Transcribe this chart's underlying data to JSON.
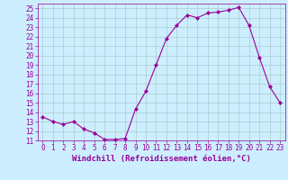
{
  "x": [
    0,
    1,
    2,
    3,
    4,
    5,
    6,
    7,
    8,
    9,
    10,
    11,
    12,
    13,
    14,
    15,
    16,
    17,
    18,
    19,
    20,
    21,
    22,
    23
  ],
  "y": [
    13.5,
    13.0,
    12.7,
    13.0,
    12.2,
    11.8,
    11.1,
    11.1,
    11.2,
    14.3,
    16.2,
    19.0,
    21.8,
    23.2,
    24.3,
    24.0,
    24.5,
    24.6,
    24.8,
    25.1,
    23.2,
    19.8,
    16.7,
    15.0
  ],
  "line_color": "#990099",
  "marker": "D",
  "marker_size": 2.0,
  "bg_color": "#cceeff",
  "grid_color": "#aacccc",
  "xlabel": "Windchill (Refroidissement éolien,°C)",
  "xlim": [
    -0.5,
    23.5
  ],
  "ylim": [
    11,
    25.5
  ],
  "yticks": [
    11,
    12,
    13,
    14,
    15,
    16,
    17,
    18,
    19,
    20,
    21,
    22,
    23,
    24,
    25
  ],
  "xticks": [
    0,
    1,
    2,
    3,
    4,
    5,
    6,
    7,
    8,
    9,
    10,
    11,
    12,
    13,
    14,
    15,
    16,
    17,
    18,
    19,
    20,
    21,
    22,
    23
  ],
  "tick_fontsize": 5.5,
  "label_fontsize": 6.5
}
